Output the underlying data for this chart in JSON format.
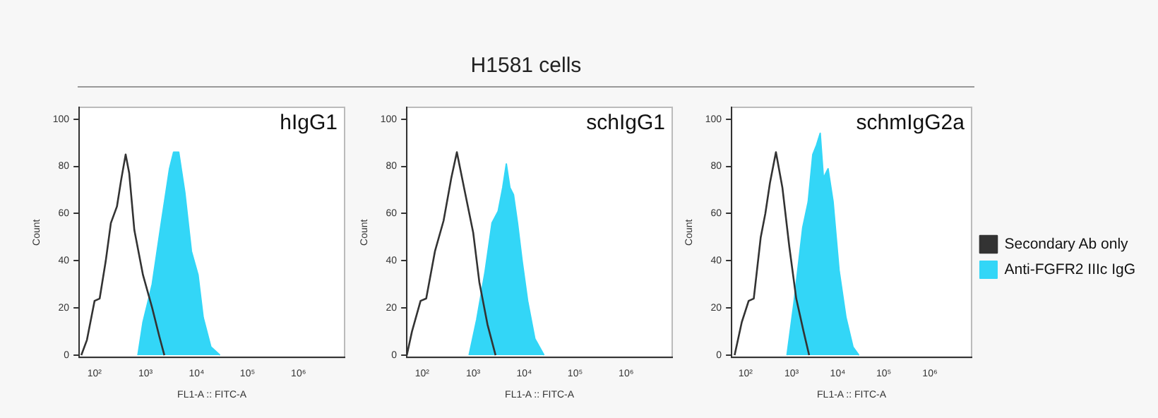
{
  "chart_data": [
    {
      "type": "area",
      "title": "hIgG1",
      "annotations": [
        "H1581 cells"
      ],
      "xlabel": "FL1-A :: FITC-A",
      "ylabel": "Count",
      "log": "x",
      "xlim": [
        50,
        8000000
      ],
      "xticks": [
        {
          "value": 100,
          "label": "10²"
        },
        {
          "value": 1000,
          "label": "10³"
        },
        {
          "value": 10000,
          "label": "10⁴"
        },
        {
          "value": 100000,
          "label": "10⁵"
        },
        {
          "value": 1000000,
          "label": "10⁶"
        }
      ],
      "ylim": [
        -1,
        105
      ],
      "yticks": [
        0,
        20,
        40,
        60,
        80,
        100
      ],
      "grid": false,
      "legend": false,
      "series": [
        {
          "type": "line",
          "color": "#333333",
          "x": [
            55,
            71,
            100,
            126,
            166,
            209,
            275,
            331,
            407,
            479,
            603,
            891,
            1350,
            1860,
            2340
          ],
          "values": [
            0,
            6.5,
            23,
            24,
            40,
            56,
            63,
            74,
            85,
            77,
            53,
            34,
            20,
            8,
            0
          ]
        },
        {
          "color": "#33d6f7",
          "x": [
            708,
            891,
            1350,
            2000,
            2950,
            3550,
            4470,
            5890,
            7940,
            10700,
            13500,
            19100,
            28800
          ],
          "values": [
            0,
            14,
            30,
            55,
            79,
            86,
            86,
            69,
            44,
            34,
            16,
            3.5,
            0
          ]
        }
      ]
    },
    {
      "type": "area",
      "title": "schIgG1",
      "xlabel": "FL1-A :: FITC-A",
      "ylabel": "Count",
      "log": "x",
      "xlim": [
        50,
        8000000
      ],
      "xticks": [
        {
          "value": 100,
          "label": "10²"
        },
        {
          "value": 1000,
          "label": "10³"
        },
        {
          "value": 10000,
          "label": "10⁴"
        },
        {
          "value": 100000,
          "label": "10⁵"
        },
        {
          "value": 1000000,
          "label": "10⁶"
        }
      ],
      "ylim": [
        -1,
        105
      ],
      "yticks": [
        0,
        20,
        40,
        60,
        80,
        100
      ],
      "grid": false,
      "legend": false,
      "series": [
        {
          "type": "line",
          "color": "#333333",
          "x": [
            50,
            63,
            93,
            120,
            178,
            263,
            372,
            479,
            676,
            1000,
            1320,
            1910,
            2750
          ],
          "values": [
            0,
            10,
            23,
            24,
            44,
            57,
            75,
            86,
            70,
            52,
            31,
            13,
            0
          ]
        },
        {
          "color": "#33d6f7",
          "x": [
            832,
            1170,
            1700,
            2340,
            3090,
            3800,
            4470,
            5250,
            6170,
            7410,
            9120,
            11700,
            16200,
            24500
          ],
          "values": [
            0,
            15,
            35,
            56,
            61,
            71,
            81,
            71,
            68,
            56,
            40,
            23,
            7,
            0
          ]
        }
      ]
    },
    {
      "type": "area",
      "title": "schmIgG2a",
      "xlabel": "FL1-A :: FITC-A",
      "ylabel": "Count",
      "log": "x",
      "xlim": [
        50,
        8000000
      ],
      "xticks": [
        {
          "value": 100,
          "label": "10²"
        },
        {
          "value": 1000,
          "label": "10³"
        },
        {
          "value": 10000,
          "label": "10⁴"
        },
        {
          "value": 100000,
          "label": "10⁵"
        },
        {
          "value": 1000000,
          "label": "10⁶"
        }
      ],
      "ylim": [
        -1,
        105
      ],
      "yticks": [
        0,
        20,
        40,
        60,
        80,
        100
      ],
      "grid": false,
      "legend": "right",
      "series": [
        {
          "type": "line",
          "name": "Secondary Ab only",
          "color": "#333333",
          "x": [
            58,
            83,
            117,
            151,
            214,
            269,
            339,
            457,
            631,
            891,
            1260,
            1820,
            2400
          ],
          "values": [
            0,
            14,
            23,
            24,
            50,
            60,
            73,
            86,
            71,
            46,
            24,
            10,
            0
          ]
        },
        {
          "name": "Anti-FGFR2 IIIc IgG",
          "color": "#33d6f7",
          "x": [
            794,
            1120,
            1740,
            2290,
            2880,
            3470,
            4170,
            4900,
            6170,
            7940,
            10700,
            15100,
            21400,
            28800
          ],
          "values": [
            0,
            22,
            54,
            65,
            85,
            89,
            94,
            75,
            79,
            65,
            36,
            16,
            3.5,
            0
          ]
        }
      ]
    }
  ]
}
